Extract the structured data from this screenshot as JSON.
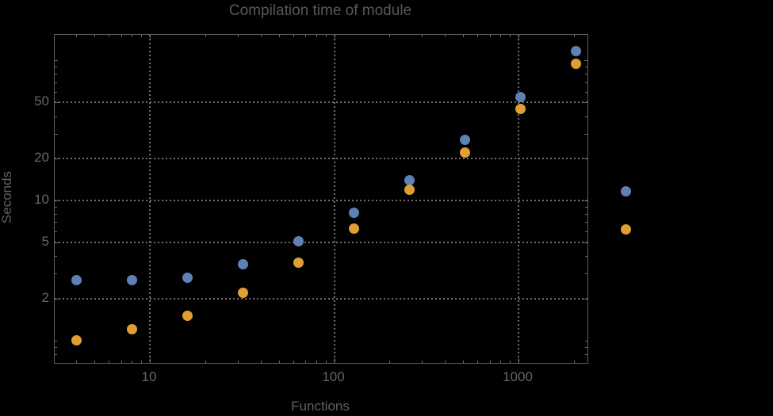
{
  "title": "Compilation time of module",
  "chart_data": {
    "type": "scatter",
    "title": "Compilation time of module",
    "xlabel": "Functions",
    "ylabel": "Seconds",
    "x_scale": "log",
    "y_scale": "log",
    "xlim": [
      3.05,
      2340
    ],
    "ylim": [
      0.69,
      152
    ],
    "grid": "dotted gray lines at labeled ticks only",
    "legend_position": "outside right of frame, markers only (no visible labels)",
    "x": [
      4,
      8,
      16,
      32,
      64,
      128,
      256,
      512,
      1024,
      2048
    ],
    "series": [
      {
        "name": "series-1-blue",
        "color": "#5E81B5",
        "values": [
          2.7,
          2.7,
          2.8,
          3.5,
          5.1,
          8.2,
          14,
          27,
          55,
          116
        ]
      },
      {
        "name": "series-2-orange",
        "color": "#E19E33",
        "values": [
          1.0,
          1.2,
          1.5,
          2.2,
          3.6,
          6.3,
          12,
          22,
          45,
          95
        ]
      }
    ],
    "x_ticks": {
      "major": [
        {
          "v": 10,
          "label": "10"
        },
        {
          "v": 100,
          "label": "100"
        },
        {
          "v": 1000,
          "label": "1000"
        }
      ],
      "minor": [
        4,
        5,
        6,
        7,
        8,
        9,
        20,
        30,
        40,
        50,
        60,
        70,
        80,
        90,
        200,
        300,
        400,
        500,
        600,
        700,
        800,
        900,
        2000
      ]
    },
    "y_ticks": {
      "major": [
        {
          "v": 2,
          "label": "2"
        },
        {
          "v": 5,
          "label": "5"
        },
        {
          "v": 10,
          "label": "10"
        },
        {
          "v": 20,
          "label": "20"
        },
        {
          "v": 50,
          "label": "50"
        }
      ],
      "medium": [
        30,
        100
      ],
      "minor": [
        0.8,
        0.9,
        1,
        3,
        4,
        6,
        7,
        8,
        9,
        40,
        60,
        70,
        80,
        90
      ]
    }
  },
  "colors": {
    "background": "#000000",
    "frame": "#5e5e5e",
    "grid": "#707070",
    "tick_text": "#656565",
    "title_text": "#585858",
    "series1": "#5E81B5",
    "series2": "#E19E33"
  }
}
